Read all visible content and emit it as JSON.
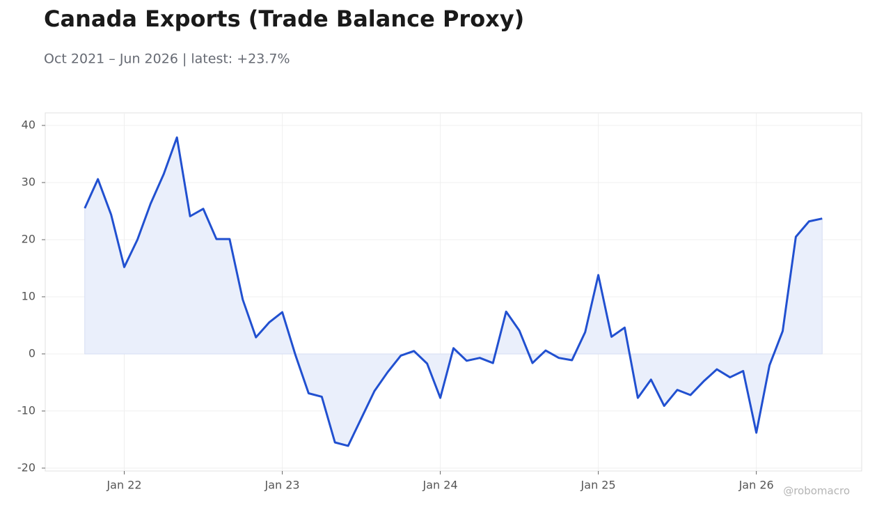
{
  "chart_data": {
    "type": "line",
    "title": "Canada Exports (Trade Balance Proxy)",
    "subtitle": "Oct 2021 – Jun 2026 | latest: +23.7%",
    "source": "@robomacro",
    "x": [
      "2021-10",
      "2021-11",
      "2021-12",
      "2022-01",
      "2022-02",
      "2022-03",
      "2022-04",
      "2022-05",
      "2022-06",
      "2022-07",
      "2022-08",
      "2022-09",
      "2022-10",
      "2022-11",
      "2022-12",
      "2023-01",
      "2023-02",
      "2023-03",
      "2023-04",
      "2023-05",
      "2023-06",
      "2023-07",
      "2023-08",
      "2023-09",
      "2023-10",
      "2023-11",
      "2023-12",
      "2024-01",
      "2024-02",
      "2024-03",
      "2024-04",
      "2024-05",
      "2024-06",
      "2024-07",
      "2024-08",
      "2024-09",
      "2024-10",
      "2024-11",
      "2024-12",
      "2025-01",
      "2025-02",
      "2025-03",
      "2025-04",
      "2025-05",
      "2025-06",
      "2025-07",
      "2025-08",
      "2025-09",
      "2025-10",
      "2025-11",
      "2025-12",
      "2026-01",
      "2026-02",
      "2026-03",
      "2026-04",
      "2026-05",
      "2026-06"
    ],
    "values": [
      25.5,
      30.6,
      24.4,
      15.2,
      20.0,
      26.3,
      31.5,
      37.9,
      24.1,
      25.4,
      20.1,
      20.1,
      9.5,
      2.9,
      5.5,
      7.3,
      -0.2,
      -6.9,
      -7.5,
      -15.5,
      -16.1,
      -11.3,
      -6.5,
      -3.2,
      -0.3,
      0.5,
      -1.7,
      -7.7,
      1.0,
      -1.2,
      -0.7,
      -1.6,
      7.4,
      4.1,
      -1.6,
      0.6,
      -0.7,
      -1.1,
      3.8,
      13.8,
      3.0,
      4.6,
      -7.7,
      -4.5,
      -9.1,
      -6.3,
      -7.2,
      -4.8,
      -2.7,
      -4.1,
      -3.0,
      -13.8,
      -2.0,
      4.0,
      20.5,
      23.2,
      23.7
    ],
    "color": "#2150d0",
    "fill_color": "#eaeffb",
    "xlim": [
      "2021-07",
      "2026-09"
    ],
    "xticks": [
      {
        "value": "2022-01",
        "label": "Jan 22"
      },
      {
        "value": "2023-01",
        "label": "Jan 23"
      },
      {
        "value": "2024-01",
        "label": "Jan 24"
      },
      {
        "value": "2025-01",
        "label": "Jan 25"
      },
      {
        "value": "2026-01",
        "label": "Jan 26"
      }
    ],
    "ylim": [
      -20.5,
      42.2
    ],
    "yticks": [
      -20,
      -10,
      0,
      10,
      20,
      30,
      40
    ],
    "grid": true
  }
}
